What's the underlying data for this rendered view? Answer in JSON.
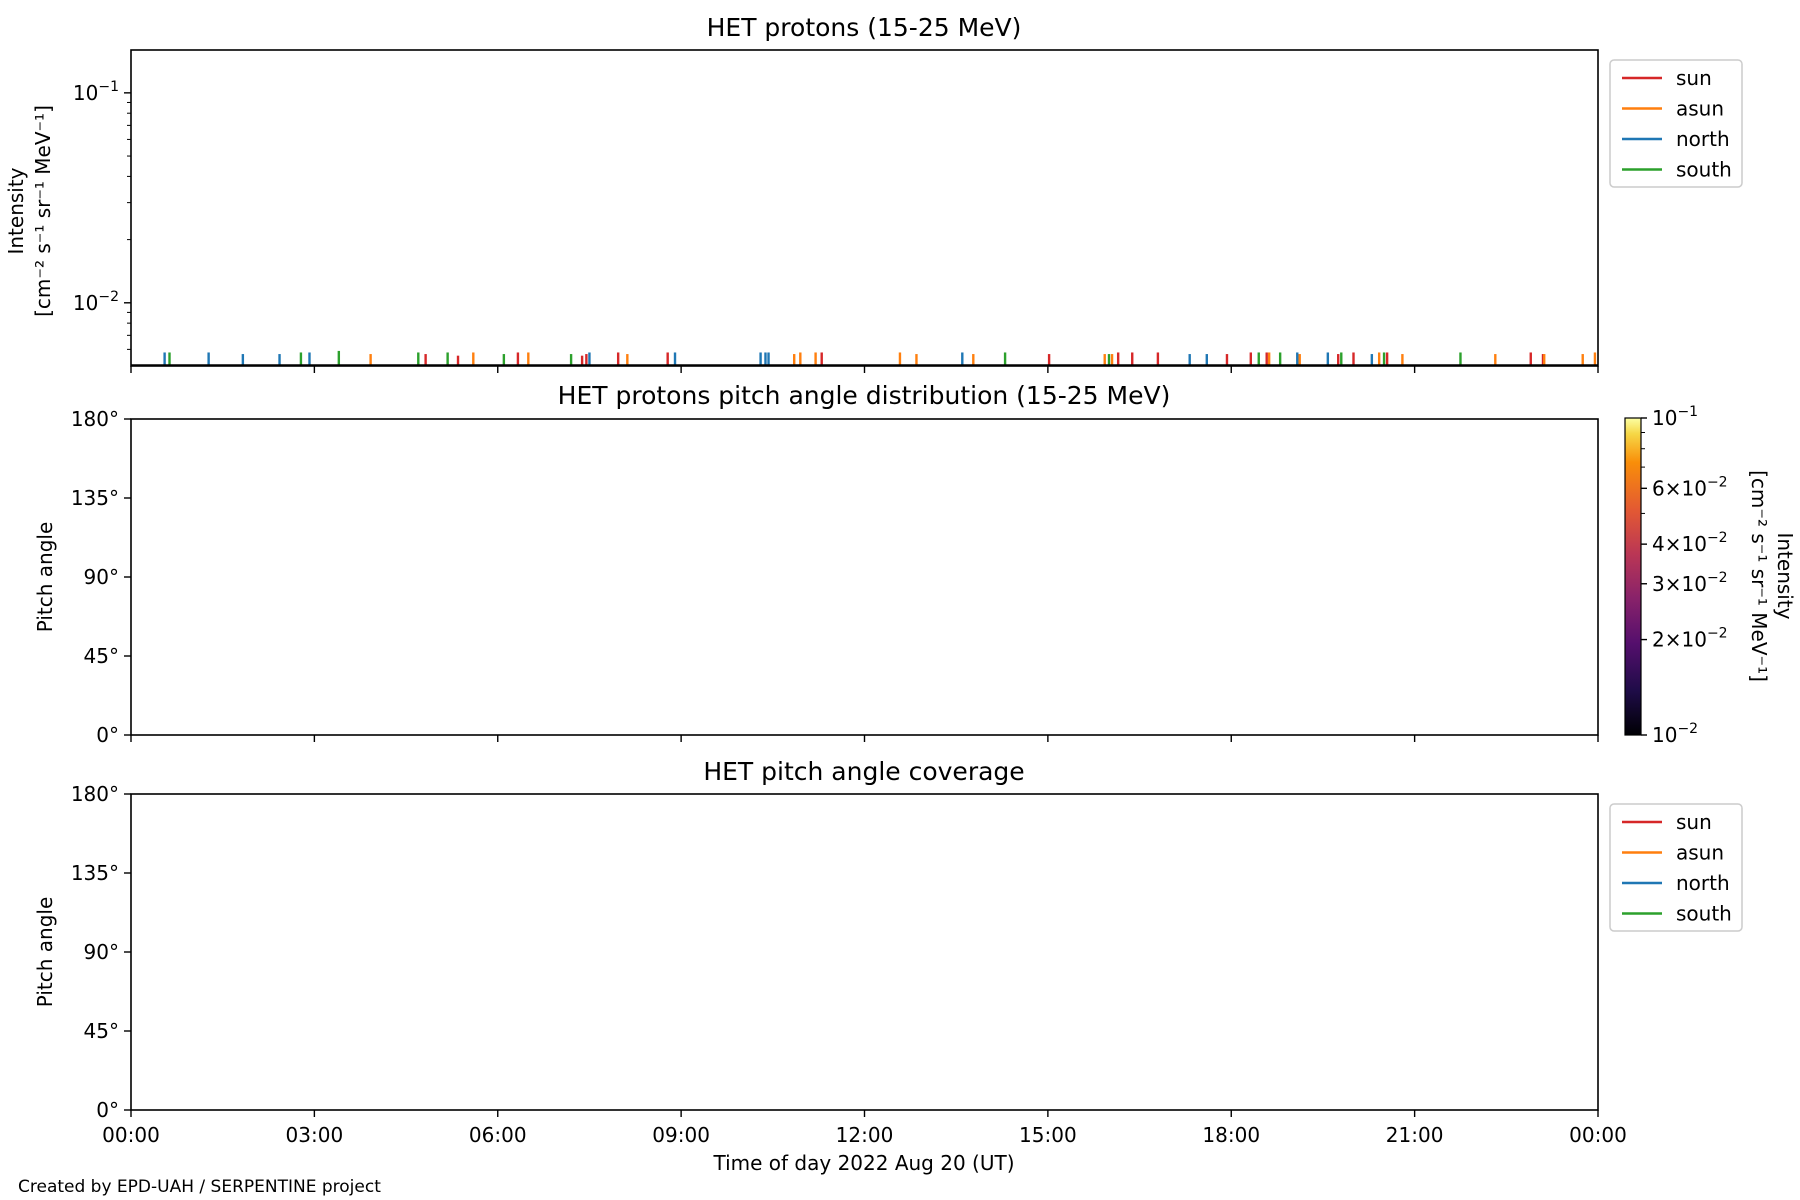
{
  "figure": {
    "footer": "Created by EPD-UAH / SERPENTINE project",
    "x_axis": {
      "label": "Time of day 2022 Aug 20 (UT)",
      "ticks": [
        "00:00",
        "03:00",
        "06:00",
        "09:00",
        "12:00",
        "15:00",
        "18:00",
        "21:00",
        "00:00"
      ]
    },
    "legend": [
      "sun",
      "asun",
      "north",
      "south"
    ],
    "colors": {
      "sun": "#d62728",
      "asun": "#ff7f0e",
      "north": "#1f77b4",
      "south": "#2ca02c"
    }
  },
  "chart_data": [
    {
      "type": "line",
      "title": "HET protons (15-25 MeV)",
      "ylabel_line1": "Intensity",
      "ylabel_line2": "[cm⁻² s⁻¹ sr⁻¹ MeV⁻¹]",
      "yscale": "log",
      "ylim": [
        0.005,
        0.16
      ],
      "xlim_hours": [
        0,
        24
      ],
      "yticks": [
        {
          "value": 0.1,
          "mantissa": "10",
          "exp": "−1"
        },
        {
          "value": 0.01,
          "mantissa": "10",
          "exp": "−2"
        }
      ],
      "baseline": 0.005,
      "legend_placement": "outside-right-top",
      "series": [
        {
          "name": "sun",
          "color": "#d62728",
          "spikes": [
            {
              "t": 4.82,
              "v": 0.0057
            },
            {
              "t": 5.35,
              "v": 0.0056
            },
            {
              "t": 6.33,
              "v": 0.0058
            },
            {
              "t": 7.38,
              "v": 0.0056
            },
            {
              "t": 7.45,
              "v": 0.0057
            },
            {
              "t": 7.97,
              "v": 0.0058
            },
            {
              "t": 8.78,
              "v": 0.0058
            },
            {
              "t": 11.3,
              "v": 0.0058
            },
            {
              "t": 15.02,
              "v": 0.0057
            },
            {
              "t": 16.15,
              "v": 0.0058
            },
            {
              "t": 16.38,
              "v": 0.0058
            },
            {
              "t": 16.8,
              "v": 0.0058
            },
            {
              "t": 17.93,
              "v": 0.0057
            },
            {
              "t": 18.32,
              "v": 0.0058
            },
            {
              "t": 18.58,
              "v": 0.0058
            },
            {
              "t": 19.75,
              "v": 0.0057
            },
            {
              "t": 20.0,
              "v": 0.0058
            },
            {
              "t": 20.55,
              "v": 0.0058
            },
            {
              "t": 22.9,
              "v": 0.0058
            },
            {
              "t": 23.1,
              "v": 0.0057
            }
          ]
        },
        {
          "name": "asun",
          "color": "#ff7f0e",
          "spikes": [
            {
              "t": 3.92,
              "v": 0.0057
            },
            {
              "t": 5.6,
              "v": 0.0058
            },
            {
              "t": 6.5,
              "v": 0.0058
            },
            {
              "t": 8.12,
              "v": 0.0057
            },
            {
              "t": 10.85,
              "v": 0.0057
            },
            {
              "t": 10.95,
              "v": 0.0058
            },
            {
              "t": 11.2,
              "v": 0.0058
            },
            {
              "t": 12.58,
              "v": 0.0058
            },
            {
              "t": 12.85,
              "v": 0.0057
            },
            {
              "t": 13.78,
              "v": 0.0057
            },
            {
              "t": 15.93,
              "v": 0.0057
            },
            {
              "t": 16.05,
              "v": 0.0057
            },
            {
              "t": 18.62,
              "v": 0.0058
            },
            {
              "t": 19.12,
              "v": 0.0057
            },
            {
              "t": 20.42,
              "v": 0.0058
            },
            {
              "t": 20.8,
              "v": 0.0057
            },
            {
              "t": 22.32,
              "v": 0.0057
            },
            {
              "t": 23.12,
              "v": 0.0057
            },
            {
              "t": 23.75,
              "v": 0.0057
            },
            {
              "t": 23.95,
              "v": 0.0058
            }
          ]
        },
        {
          "name": "north",
          "color": "#1f77b4",
          "spikes": [
            {
              "t": 0.55,
              "v": 0.0058
            },
            {
              "t": 1.27,
              "v": 0.0058
            },
            {
              "t": 1.83,
              "v": 0.0057
            },
            {
              "t": 2.43,
              "v": 0.0057
            },
            {
              "t": 2.92,
              "v": 0.0058
            },
            {
              "t": 7.5,
              "v": 0.0058
            },
            {
              "t": 8.9,
              "v": 0.0058
            },
            {
              "t": 10.3,
              "v": 0.0058
            },
            {
              "t": 10.38,
              "v": 0.0058
            },
            {
              "t": 10.43,
              "v": 0.0058
            },
            {
              "t": 13.6,
              "v": 0.0058
            },
            {
              "t": 17.32,
              "v": 0.0057
            },
            {
              "t": 17.6,
              "v": 0.0057
            },
            {
              "t": 19.08,
              "v": 0.0058
            },
            {
              "t": 19.58,
              "v": 0.0058
            },
            {
              "t": 20.3,
              "v": 0.0057
            }
          ]
        },
        {
          "name": "south",
          "color": "#2ca02c",
          "spikes": [
            {
              "t": 0.63,
              "v": 0.0058
            },
            {
              "t": 2.78,
              "v": 0.0058
            },
            {
              "t": 3.4,
              "v": 0.0059
            },
            {
              "t": 4.7,
              "v": 0.0058
            },
            {
              "t": 5.18,
              "v": 0.0058
            },
            {
              "t": 6.1,
              "v": 0.0057
            },
            {
              "t": 7.2,
              "v": 0.0057
            },
            {
              "t": 14.3,
              "v": 0.0058
            },
            {
              "t": 16.0,
              "v": 0.0057
            },
            {
              "t": 18.45,
              "v": 0.0058
            },
            {
              "t": 18.8,
              "v": 0.0058
            },
            {
              "t": 19.8,
              "v": 0.0058
            },
            {
              "t": 20.5,
              "v": 0.0058
            },
            {
              "t": 21.75,
              "v": 0.0058
            }
          ]
        }
      ]
    },
    {
      "type": "heatmap",
      "title": "HET protons pitch angle distribution (15-25 MeV)",
      "ylabel": "Pitch angle",
      "ylim": [
        0,
        180
      ],
      "yticks": [
        "180°",
        "135°",
        "90°",
        "45°",
        "0°"
      ],
      "ytick_values": [
        180,
        135,
        90,
        45,
        0
      ],
      "values": [],
      "colorbar": {
        "label_line1": "Intensity",
        "label_line2": "[cm⁻² s⁻¹ sr⁻¹ MeV⁻¹]",
        "scale": "log",
        "range": [
          0.01,
          0.1
        ],
        "colormap": "inferno",
        "ticks": [
          {
            "value": 0.1,
            "mantissa": "",
            "base": "10",
            "exp": "−1"
          },
          {
            "value": 0.06,
            "mantissa": "6×",
            "base": "10",
            "exp": "−2"
          },
          {
            "value": 0.04,
            "mantissa": "4×",
            "base": "10",
            "exp": "−2"
          },
          {
            "value": 0.03,
            "mantissa": "3×",
            "base": "10",
            "exp": "−2"
          },
          {
            "value": 0.02,
            "mantissa": "2×",
            "base": "10",
            "exp": "−2"
          },
          {
            "value": 0.01,
            "mantissa": "",
            "base": "10",
            "exp": "−2"
          }
        ]
      }
    },
    {
      "type": "line",
      "title": "HET pitch angle coverage",
      "ylabel": "Pitch angle",
      "ylim": [
        0,
        180
      ],
      "yticks": [
        "180°",
        "135°",
        "90°",
        "45°",
        "0°"
      ],
      "ytick_values": [
        180,
        135,
        90,
        45,
        0
      ],
      "series": [
        {
          "name": "sun",
          "color": "#d62728",
          "values": []
        },
        {
          "name": "asun",
          "color": "#ff7f0e",
          "values": []
        },
        {
          "name": "north",
          "color": "#1f77b4",
          "values": []
        },
        {
          "name": "south",
          "color": "#2ca02c",
          "values": []
        }
      ],
      "legend_placement": "outside-right-top"
    }
  ]
}
